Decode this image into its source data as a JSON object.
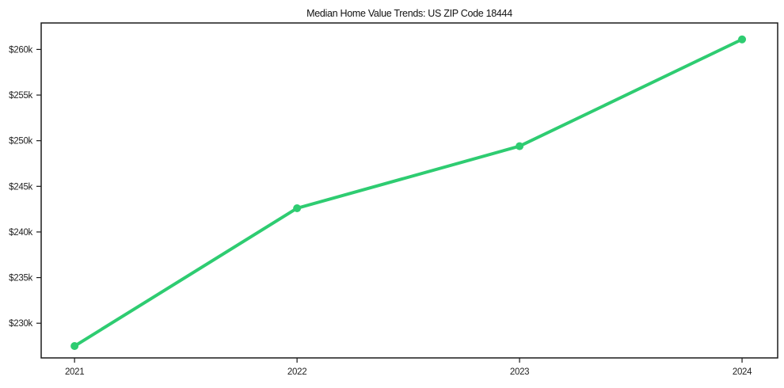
{
  "figure": {
    "background_color": "#ffffff",
    "border_color": "#1a1a1a"
  },
  "chart_data": {
    "type": "line",
    "title": "Median Home Value Trends: US ZIP Code 18444",
    "xlabel": "",
    "ylabel": "",
    "grid": false,
    "legend_position": "none",
    "categories": [
      2021,
      2022,
      2023,
      2024
    ],
    "xtick_labels": [
      "2021",
      "2022",
      "2023",
      "2024"
    ],
    "ytick_values_k": [
      230,
      235,
      240,
      245,
      250,
      255,
      260
    ],
    "ytick_labels": [
      "$230k",
      "$235k",
      "$240k",
      "$245k",
      "$250k",
      "$255k",
      "$260k"
    ],
    "xlim": [
      2020.85,
      2024.16
    ],
    "ylim_k": [
      226.2,
      262.9
    ],
    "series": [
      {
        "name": "Median Home Value",
        "color": "#2ecc71",
        "x": [
          2021,
          2022,
          2023,
          2024
        ],
        "values_k": [
          227.5,
          242.6,
          249.4,
          261.1
        ]
      }
    ]
  }
}
